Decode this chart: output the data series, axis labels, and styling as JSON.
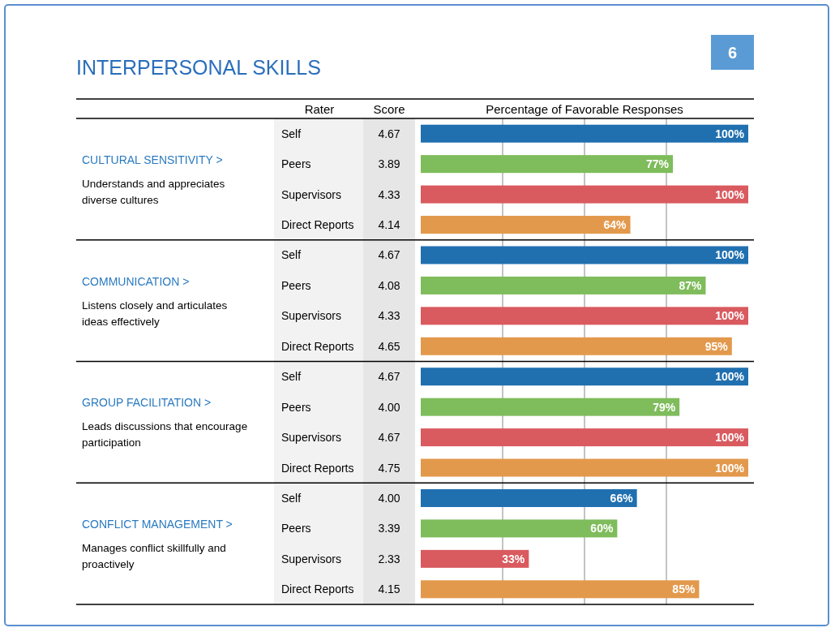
{
  "chart_data": {
    "type": "bar",
    "orientation": "horizontal",
    "title": "INTERPERSONAL SKILLS",
    "xlabel": "Percentage of Favorable Responses",
    "ylabel": "Rater",
    "categories": [
      "Self",
      "Peers",
      "Supervisors",
      "Direct Reports",
      "Self",
      "Peers",
      "Supervisors",
      "Direct Reports",
      "Self",
      "Peers",
      "Supervisors",
      "Direct Reports",
      "Self",
      "Peers",
      "Supervisors",
      "Direct Reports"
    ],
    "values": [
      100,
      77,
      100,
      64,
      100,
      87,
      100,
      95,
      100,
      79,
      100,
      100,
      66,
      60,
      33,
      85
    ],
    "value_labels": [
      "100%",
      "77%",
      "100%",
      "64%",
      "100%",
      "87%",
      "100%",
      "95%",
      "100%",
      "79%",
      "100%",
      "100%",
      "66%",
      "60%",
      "33%",
      "85%"
    ],
    "colors": [
      "#2070b0",
      "#7fbc5c",
      "#d95a5f",
      "#e3994c",
      "#2070b0",
      "#7fbc5c",
      "#d95a5f",
      "#e3994c",
      "#2070b0",
      "#7fbc5c",
      "#d95a5f",
      "#e3994c",
      "#2070b0",
      "#7fbc5c",
      "#d95a5f",
      "#e3994c"
    ],
    "xlim": [
      0,
      100
    ],
    "xticks": [
      {
        "value": 25,
        "label": null
      },
      {
        "value": 50,
        "label": null
      },
      {
        "value": 75,
        "label": null
      }
    ],
    "grid": "x",
    "tick_labels": "y",
    "annotations": [
      "6",
      "Score",
      "CULTURAL SENSITIVITY >",
      "Understands and appreciates diverse cultures",
      "COMMUNICATION >",
      "Listens closely and articulates ideas effectively",
      "GROUP FACILITATION >",
      "Leads discussions that encourage participation",
      "CONFLICT MANAGEMENT >",
      "Manages conflict skillfully and proactively",
      "4.67",
      "3.89",
      "4.33",
      "4.14",
      "4.67",
      "4.08",
      "4.33",
      "4.65",
      "4.67",
      "4.00",
      "4.67",
      "4.75",
      "4.00",
      "3.39",
      "2.33",
      "4.15"
    ]
  }
}
